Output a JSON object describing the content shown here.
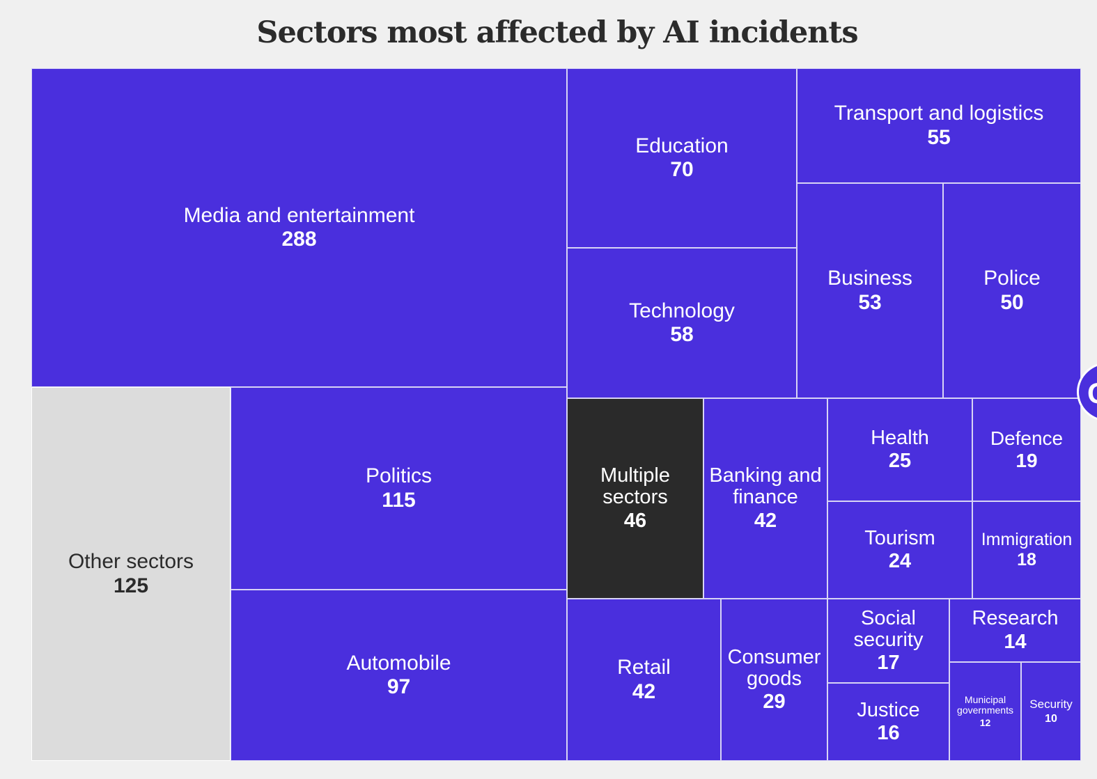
{
  "chart_data": {
    "type": "treemap",
    "title": "Sectors most affected by AI incidents",
    "items": [
      {
        "name": "Media and entertainment",
        "value": 288
      },
      {
        "name": "Other sectors",
        "value": 125
      },
      {
        "name": "Politics",
        "value": 115
      },
      {
        "name": "Automobile",
        "value": 97
      },
      {
        "name": "Education",
        "value": 70
      },
      {
        "name": "Technology",
        "value": 58
      },
      {
        "name": "Transport and logistics",
        "value": 55
      },
      {
        "name": "Business",
        "value": 53
      },
      {
        "name": "Police",
        "value": 50
      },
      {
        "name": "Multiple sectors",
        "value": 46
      },
      {
        "name": "Banking and finance",
        "value": 42
      },
      {
        "name": "Retail",
        "value": 42
      },
      {
        "name": "Consumer goods",
        "value": 29
      },
      {
        "name": "Health",
        "value": 25
      },
      {
        "name": "Tourism",
        "value": 24
      },
      {
        "name": "Defence",
        "value": 19
      },
      {
        "name": "Immigration",
        "value": 18
      },
      {
        "name": "Social security",
        "value": 17
      },
      {
        "name": "Justice",
        "value": 16
      },
      {
        "name": "Research",
        "value": 14
      },
      {
        "name": "Municipal governments",
        "value": 12
      },
      {
        "name": "Security",
        "value": 10
      }
    ],
    "colors": {
      "default": "#4a2fdd",
      "Other sectors": "#dcdcdc",
      "Multiple sectors": "#2a2a2a"
    }
  }
}
